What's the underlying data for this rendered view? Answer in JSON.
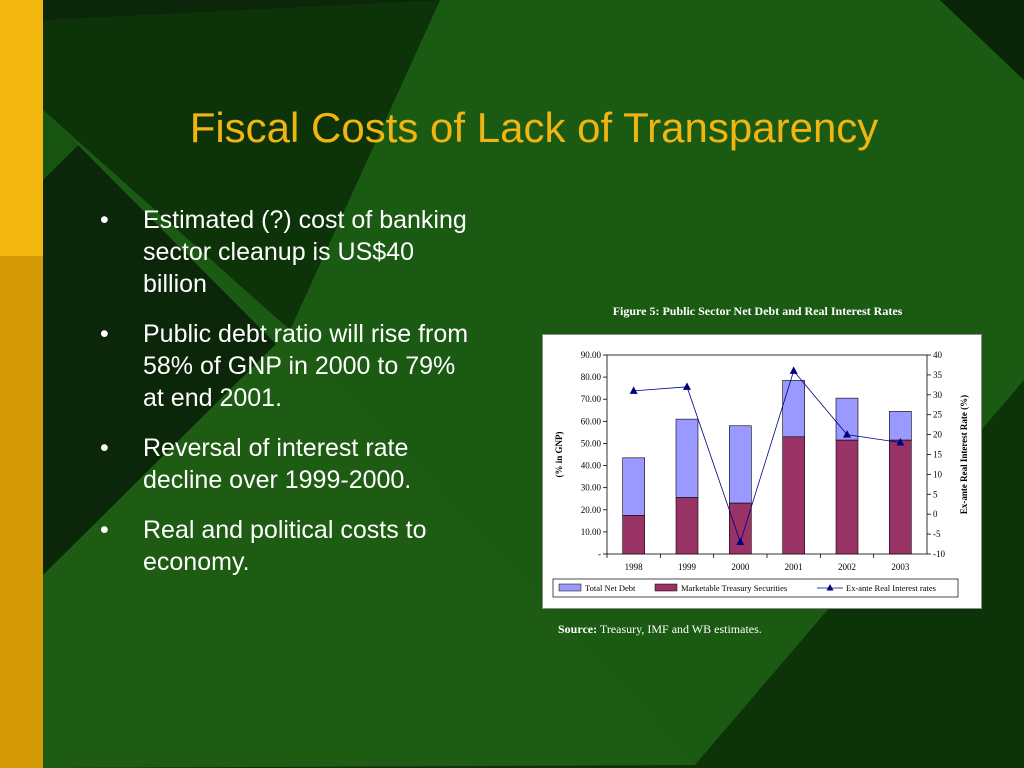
{
  "slide": {
    "title": "Fiscal Costs of Lack of Transparency",
    "bullet_glyph": "•",
    "bullets": [
      "Estimated (?) cost of banking sector cleanup is US$40 billion",
      "Public debt ratio will rise from 58% of GNP in 2000 to 79% at end 2001.",
      "Reversal of interest rate decline over 1999-2000.",
      "Real and political costs to economy."
    ],
    "figure_caption": "Figure 5: Public Sector Net Debt and Real Interest Rates",
    "source_label": "Source:",
    "source_text": "Treasury, IMF and WB estimates.",
    "colors": {
      "background": "#0a2a08",
      "accent_gold": "#f0b512",
      "bar_total": "#9999ff",
      "bar_securities": "#993366",
      "line_rate": "#000080"
    }
  },
  "chart_data": {
    "type": "bar",
    "categories": [
      "1998",
      "1999",
      "2000",
      "2001",
      "2002",
      "2003"
    ],
    "series": [
      {
        "name": "Total Net Debt",
        "type": "bar",
        "values": [
          43.5,
          61,
          58,
          78.5,
          70.5,
          64.5
        ]
      },
      {
        "name": "Marketable Treasury Securities",
        "type": "bar",
        "values": [
          17.5,
          25.5,
          23,
          53,
          51.5,
          51.5
        ]
      },
      {
        "name": "Ex-ante Real Interest rates",
        "type": "line",
        "axis": "right",
        "values": [
          31,
          32,
          -7,
          36,
          20,
          18
        ]
      }
    ],
    "ylabel": "(% in GNP)",
    "y2label": "Ex-ante Real Interest Rate (%)",
    "ylim": [
      0,
      90
    ],
    "y2lim": [
      -10,
      40
    ],
    "yticks": [
      "-",
      "10.00",
      "20.00",
      "30.00",
      "40.00",
      "50.00",
      "60.00",
      "70.00",
      "80.00",
      "90.00"
    ],
    "y2ticks": [
      "-10",
      "-5",
      "0",
      "5",
      "10",
      "15",
      "20",
      "25",
      "30",
      "35",
      "40"
    ],
    "legend": "bottom",
    "grid": false
  }
}
